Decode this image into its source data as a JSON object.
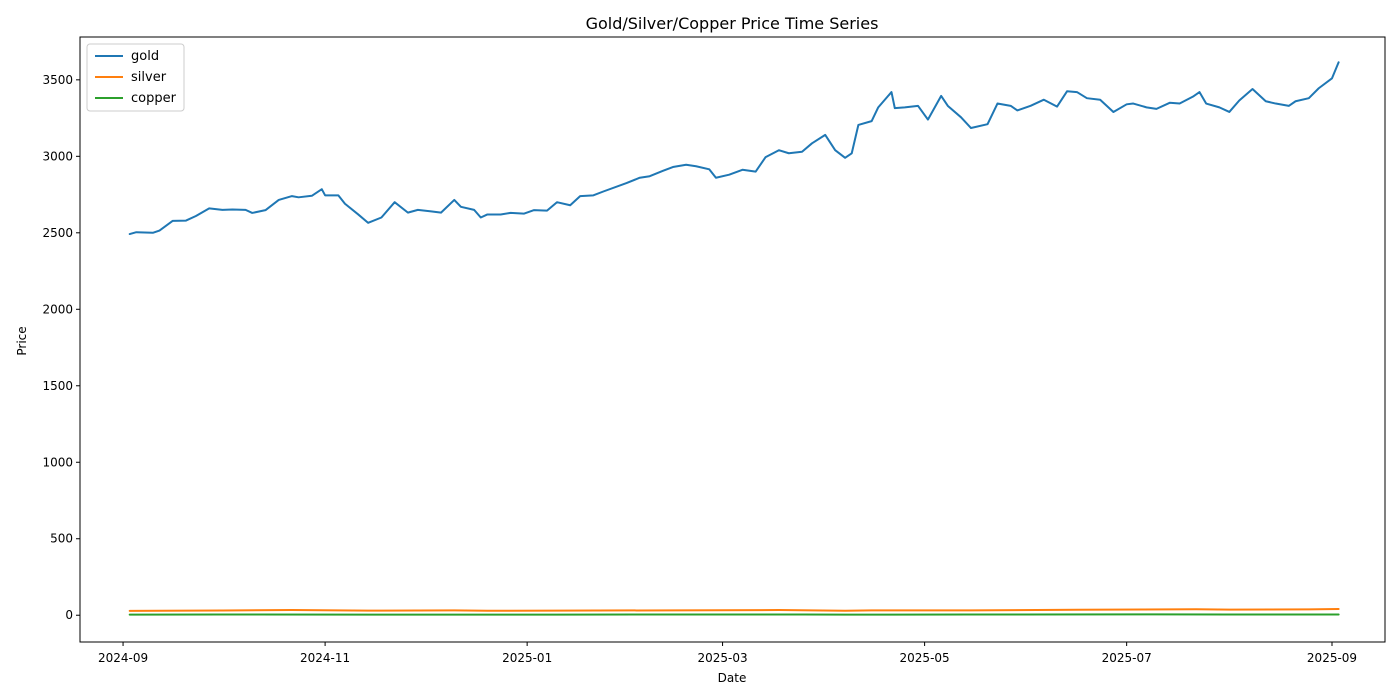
{
  "chart_data": {
    "type": "line",
    "title": "Gold/Silver/Copper Price Time Series",
    "xlabel": "Date",
    "ylabel": "Price",
    "x_axis": {
      "ticks": [
        "2024-09",
        "2024-11",
        "2025-01",
        "2025-03",
        "2025-05",
        "2025-07",
        "2025-09"
      ],
      "range": [
        "2024-08-19",
        "2025-09-17"
      ]
    },
    "y_axis": {
      "ticks": [
        0,
        500,
        1000,
        1500,
        2000,
        2500,
        3000,
        3500
      ],
      "range": [
        -175,
        3780
      ]
    },
    "grid": false,
    "legend_position": "top-left",
    "series": [
      {
        "name": "gold",
        "color": "#1f77b4",
        "points": [
          [
            "2024-09-03",
            2492
          ],
          [
            "2024-09-05",
            2504
          ],
          [
            "2024-09-10",
            2500
          ],
          [
            "2024-09-12",
            2515
          ],
          [
            "2024-09-16",
            2578
          ],
          [
            "2024-09-20",
            2580
          ],
          [
            "2024-09-23",
            2610
          ],
          [
            "2024-09-27",
            2660
          ],
          [
            "2024-10-01",
            2650
          ],
          [
            "2024-10-04",
            2652
          ],
          [
            "2024-10-08",
            2650
          ],
          [
            "2024-10-10",
            2630
          ],
          [
            "2024-10-14",
            2648
          ],
          [
            "2024-10-18",
            2715
          ],
          [
            "2024-10-22",
            2740
          ],
          [
            "2024-10-24",
            2732
          ],
          [
            "2024-10-28",
            2742
          ],
          [
            "2024-10-31",
            2785
          ],
          [
            "2024-11-01",
            2745
          ],
          [
            "2024-11-05",
            2745
          ],
          [
            "2024-11-07",
            2690
          ],
          [
            "2024-11-11",
            2620
          ],
          [
            "2024-11-14",
            2565
          ],
          [
            "2024-11-18",
            2600
          ],
          [
            "2024-11-22",
            2700
          ],
          [
            "2024-11-26",
            2632
          ],
          [
            "2024-11-29",
            2650
          ],
          [
            "2024-12-03",
            2640
          ],
          [
            "2024-12-06",
            2632
          ],
          [
            "2024-12-10",
            2715
          ],
          [
            "2024-12-12",
            2670
          ],
          [
            "2024-12-16",
            2650
          ],
          [
            "2024-12-18",
            2600
          ],
          [
            "2024-12-20",
            2620
          ],
          [
            "2024-12-24",
            2620
          ],
          [
            "2024-12-27",
            2630
          ],
          [
            "2024-12-31",
            2625
          ],
          [
            "2025-01-03",
            2648
          ],
          [
            "2025-01-07",
            2645
          ],
          [
            "2025-01-10",
            2700
          ],
          [
            "2025-01-14",
            2680
          ],
          [
            "2025-01-17",
            2740
          ],
          [
            "2025-01-21",
            2745
          ],
          [
            "2025-01-24",
            2770
          ],
          [
            "2025-01-31",
            2825
          ],
          [
            "2025-02-04",
            2860
          ],
          [
            "2025-02-07",
            2870
          ],
          [
            "2025-02-11",
            2905
          ],
          [
            "2025-02-14",
            2930
          ],
          [
            "2025-02-18",
            2945
          ],
          [
            "2025-02-21",
            2935
          ],
          [
            "2025-02-25",
            2915
          ],
          [
            "2025-02-27",
            2860
          ],
          [
            "2025-03-03",
            2880
          ],
          [
            "2025-03-07",
            2912
          ],
          [
            "2025-03-11",
            2900
          ],
          [
            "2025-03-14",
            2995
          ],
          [
            "2025-03-18",
            3040
          ],
          [
            "2025-03-21",
            3020
          ],
          [
            "2025-03-25",
            3030
          ],
          [
            "2025-03-28",
            3085
          ],
          [
            "2025-04-01",
            3140
          ],
          [
            "2025-04-04",
            3040
          ],
          [
            "2025-04-07",
            2990
          ],
          [
            "2025-04-09",
            3020
          ],
          [
            "2025-04-11",
            3205
          ],
          [
            "2025-04-15",
            3230
          ],
          [
            "2025-04-17",
            3320
          ],
          [
            "2025-04-21",
            3420
          ],
          [
            "2025-04-22",
            3315
          ],
          [
            "2025-04-25",
            3320
          ],
          [
            "2025-04-29",
            3330
          ],
          [
            "2025-05-02",
            3240
          ],
          [
            "2025-05-06",
            3395
          ],
          [
            "2025-05-08",
            3330
          ],
          [
            "2025-05-12",
            3255
          ],
          [
            "2025-05-15",
            3185
          ],
          [
            "2025-05-20",
            3210
          ],
          [
            "2025-05-23",
            3345
          ],
          [
            "2025-05-27",
            3330
          ],
          [
            "2025-05-29",
            3300
          ],
          [
            "2025-06-02",
            3330
          ],
          [
            "2025-06-06",
            3370
          ],
          [
            "2025-06-10",
            3325
          ],
          [
            "2025-06-13",
            3425
          ],
          [
            "2025-06-16",
            3420
          ],
          [
            "2025-06-19",
            3380
          ],
          [
            "2025-06-23",
            3370
          ],
          [
            "2025-06-25",
            3330
          ],
          [
            "2025-06-27",
            3290
          ],
          [
            "2025-07-01",
            3340
          ],
          [
            "2025-07-03",
            3345
          ],
          [
            "2025-07-07",
            3320
          ],
          [
            "2025-07-10",
            3310
          ],
          [
            "2025-07-14",
            3350
          ],
          [
            "2025-07-17",
            3345
          ],
          [
            "2025-07-21",
            3390
          ],
          [
            "2025-07-23",
            3420
          ],
          [
            "2025-07-25",
            3345
          ],
          [
            "2025-07-29",
            3320
          ],
          [
            "2025-08-01",
            3290
          ],
          [
            "2025-08-04",
            3365
          ],
          [
            "2025-08-08",
            3440
          ],
          [
            "2025-08-12",
            3360
          ],
          [
            "2025-08-15",
            3345
          ],
          [
            "2025-08-19",
            3330
          ],
          [
            "2025-08-21",
            3360
          ],
          [
            "2025-08-25",
            3380
          ],
          [
            "2025-08-28",
            3445
          ],
          [
            "2025-09-01",
            3510
          ],
          [
            "2025-09-03",
            3615
          ]
        ]
      },
      {
        "name": "silver",
        "color": "#ff7f0e",
        "points": [
          [
            "2024-09-03",
            28.5
          ],
          [
            "2024-10-01",
            31
          ],
          [
            "2024-10-22",
            34
          ],
          [
            "2024-11-14",
            30
          ],
          [
            "2024-12-10",
            32
          ],
          [
            "2024-12-20",
            29
          ],
          [
            "2025-01-10",
            30
          ],
          [
            "2025-02-14",
            32
          ],
          [
            "2025-03-18",
            34
          ],
          [
            "2025-04-07",
            29
          ],
          [
            "2025-04-15",
            32
          ],
          [
            "2025-05-15",
            32
          ],
          [
            "2025-06-16",
            36
          ],
          [
            "2025-07-22",
            39
          ],
          [
            "2025-08-01",
            37
          ],
          [
            "2025-08-25",
            38
          ],
          [
            "2025-09-03",
            41
          ]
        ]
      },
      {
        "name": "copper",
        "color": "#2ca02c",
        "points": [
          [
            "2024-09-03",
            4.1
          ],
          [
            "2024-10-01",
            4.5
          ],
          [
            "2024-11-14",
            4.1
          ],
          [
            "2025-01-10",
            4.3
          ],
          [
            "2025-03-25",
            5.1
          ],
          [
            "2025-04-07",
            4.2
          ],
          [
            "2025-05-15",
            4.6
          ],
          [
            "2025-07-10",
            5.6
          ],
          [
            "2025-08-01",
            4.4
          ],
          [
            "2025-09-03",
            4.5
          ]
        ]
      }
    ]
  }
}
